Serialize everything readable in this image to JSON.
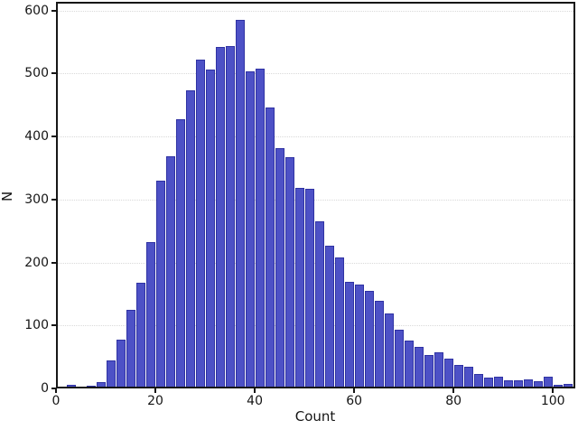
{
  "chart_data": {
    "type": "bar",
    "subtype": "histogram",
    "title": "",
    "xlabel": "Count",
    "ylabel": "N",
    "bin_width": 2,
    "bin_starts": [
      2,
      4,
      6,
      8,
      10,
      12,
      14,
      16,
      18,
      20,
      22,
      24,
      26,
      28,
      30,
      32,
      34,
      36,
      38,
      40,
      42,
      44,
      46,
      48,
      50,
      52,
      54,
      56,
      58,
      60,
      62,
      64,
      66,
      68,
      70,
      72,
      74,
      76,
      78,
      80,
      82,
      84,
      86,
      88,
      90,
      92,
      94,
      96,
      98,
      100,
      102
    ],
    "values": [
      6,
      0,
      5,
      10,
      44,
      78,
      125,
      168,
      232,
      330,
      369,
      427,
      473,
      522,
      506,
      542,
      544,
      585,
      504,
      508,
      446,
      381,
      368,
      318,
      317,
      266,
      227,
      208,
      169,
      165,
      155,
      139,
      119,
      94,
      76,
      66,
      53,
      57,
      48,
      37,
      35,
      23,
      17,
      19,
      13,
      13,
      15,
      12,
      19,
      6,
      7
    ],
    "x_ticks": [
      0,
      20,
      40,
      60,
      80,
      100
    ],
    "y_ticks": [
      0,
      100,
      200,
      300,
      400,
      500,
      600
    ],
    "xlim": [
      0,
      104.5
    ],
    "ylim": [
      0,
      614
    ],
    "grid": "y-axis only, dotted light gray",
    "legend_position": "none",
    "bar_color": "#4d51c6",
    "bar_edge_color": "#2f32a3",
    "frame_color": "#161616"
  }
}
